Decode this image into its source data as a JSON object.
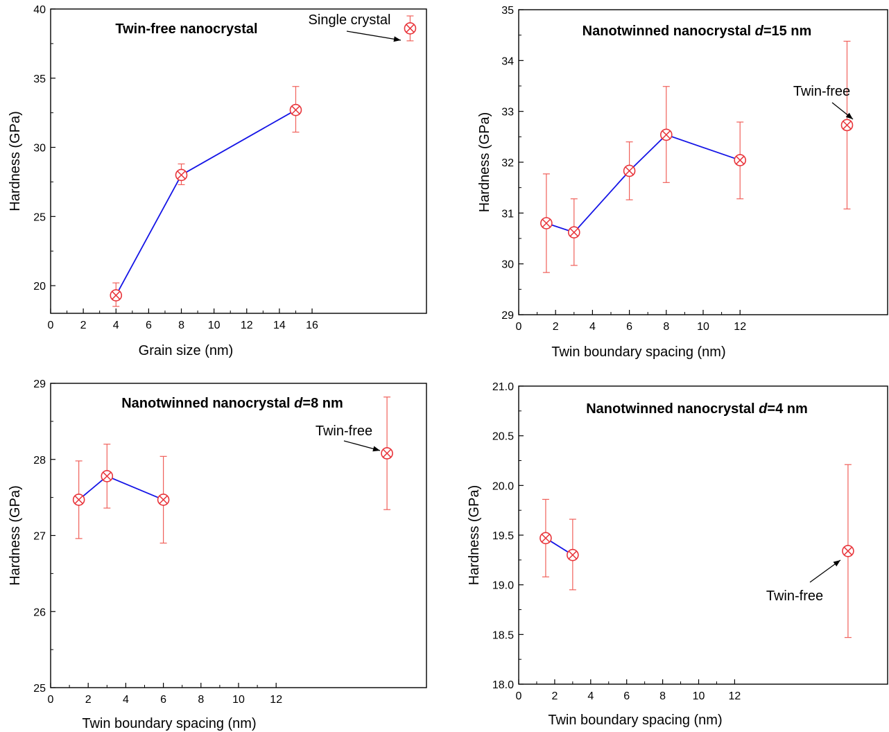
{
  "chart_data": [
    {
      "type": "scatter",
      "title": "Twin-free nanocrystal",
      "title_parts": [],
      "xlabel": "Grain size (nm)",
      "ylabel": "Hardness (GPa)",
      "xlim": [
        0,
        23
      ],
      "ylim": [
        18,
        40
      ],
      "x_ticks": [
        0,
        2,
        4,
        6,
        8,
        10,
        12,
        14,
        16
      ],
      "y_ticks": [
        20,
        25,
        30,
        35,
        40
      ],
      "series": [
        {
          "points": [
            {
              "x": 4,
              "y": 19.3,
              "err_low": 18.5,
              "err_high": 20.2
            },
            {
              "x": 8,
              "y": 28.0,
              "err_low": 27.3,
              "err_high": 28.8
            },
            {
              "x": 15,
              "y": 32.7,
              "err_low": 31.1,
              "err_high": 34.4
            }
          ],
          "connected": true
        },
        {
          "points": [
            {
              "x": 22,
              "y": 38.6,
              "err_low": 37.7,
              "err_high": 39.5
            }
          ],
          "connected": false
        }
      ],
      "annotation": {
        "text": "Single crystal",
        "points_to": 38.6
      },
      "colors": {
        "line": "#1414e6",
        "marker": "#e8343a",
        "error": "#f0605a"
      }
    },
    {
      "type": "scatter",
      "title": "Nanotwinned nanocrystal d=15 nm",
      "title_parts": [
        "Nanotwinned nanocrystal ",
        "d",
        "=15 nm"
      ],
      "xlabel": "Twin boundary spacing (nm)",
      "ylabel": "Hardness (GPa)",
      "xlim": [
        0,
        20
      ],
      "ylim": [
        29,
        35
      ],
      "x_ticks": [
        0,
        2,
        4,
        6,
        8,
        10,
        12
      ],
      "y_ticks": [
        29,
        30,
        31,
        32,
        33,
        34,
        35
      ],
      "series": [
        {
          "points": [
            {
              "x": 1.5,
              "y": 30.8,
              "err_low": 29.83,
              "err_high": 31.77
            },
            {
              "x": 3,
              "y": 30.62,
              "err_low": 29.97,
              "err_high": 31.28
            },
            {
              "x": 6,
              "y": 31.83,
              "err_low": 31.26,
              "err_high": 32.4
            },
            {
              "x": 8,
              "y": 32.54,
              "err_low": 31.6,
              "err_high": 33.49
            },
            {
              "x": 12,
              "y": 32.04,
              "err_low": 31.28,
              "err_high": 32.79
            }
          ],
          "connected": true
        },
        {
          "points": [
            {
              "x": 17.8,
              "y": 32.73,
              "err_low": 31.08,
              "err_high": 34.38
            }
          ],
          "connected": false
        }
      ],
      "annotation": {
        "text": "Twin-free"
      },
      "colors": {
        "line": "#1414e6",
        "marker": "#e8343a",
        "error": "#f0605a"
      }
    },
    {
      "type": "scatter",
      "title": "Nanotwinned nanocrystal d=8 nm",
      "title_parts": [
        "Nanotwinned nanocrystal ",
        "d",
        "=8 nm"
      ],
      "xlabel": "Twin boundary spacing (nm)",
      "ylabel": "Hardness (GPa)",
      "xlim": [
        0,
        20
      ],
      "ylim": [
        25,
        29
      ],
      "x_ticks": [
        0,
        2,
        4,
        6,
        8,
        10,
        12
      ],
      "y_ticks": [
        25,
        26,
        27,
        28,
        29
      ],
      "series": [
        {
          "points": [
            {
              "x": 1.5,
              "y": 27.47,
              "err_low": 26.96,
              "err_high": 27.98
            },
            {
              "x": 3,
              "y": 27.78,
              "err_low": 27.36,
              "err_high": 28.2
            },
            {
              "x": 6,
              "y": 27.47,
              "err_low": 26.9,
              "err_high": 28.04
            }
          ],
          "connected": true
        },
        {
          "points": [
            {
              "x": 17.9,
              "y": 28.08,
              "err_low": 27.34,
              "err_high": 28.82
            }
          ],
          "connected": false
        }
      ],
      "annotation": {
        "text": "Twin-free"
      },
      "colors": {
        "line": "#1414e6",
        "marker": "#e8343a",
        "error": "#f0605a"
      }
    },
    {
      "type": "scatter",
      "title": "Nanotwinned nanocrystal d=4 nm",
      "title_parts": [
        "Nanotwinned nanocrystal ",
        "d",
        "=4 nm"
      ],
      "xlabel": "Twin boundary spacing (nm)",
      "ylabel": "Hardness (GPa)",
      "xlim": [
        0,
        20.5
      ],
      "ylim": [
        18.0,
        21.0
      ],
      "x_ticks": [
        0,
        2,
        4,
        6,
        8,
        10,
        12
      ],
      "y_ticks": [
        18.0,
        18.5,
        19.0,
        19.5,
        20.0,
        20.5,
        21.0
      ],
      "y_tick_labels": [
        "18.0",
        "18.5",
        "19.0",
        "19.5",
        "20.0",
        "20.5",
        "21.0"
      ],
      "series": [
        {
          "points": [
            {
              "x": 1.5,
              "y": 19.47,
              "err_low": 19.08,
              "err_high": 19.86
            },
            {
              "x": 3,
              "y": 19.3,
              "err_low": 18.95,
              "err_high": 19.66
            }
          ],
          "connected": true
        },
        {
          "points": [
            {
              "x": 18.3,
              "y": 19.34,
              "err_low": 18.47,
              "err_high": 20.21
            }
          ],
          "connected": false
        }
      ],
      "annotation": {
        "text": "Twin-free"
      },
      "colors": {
        "line": "#1414e6",
        "marker": "#e8343a",
        "error": "#f0605a"
      }
    }
  ]
}
